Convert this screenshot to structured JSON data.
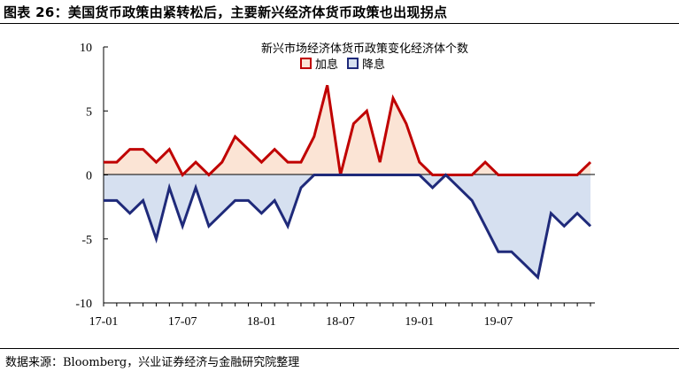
{
  "figure": {
    "title": "图表 26：美国货币政策由紧转松后，主要新兴经济体货币政策也出现拐点",
    "source": "数据来源：Bloomberg，兴业证券经济与金融研究院整理"
  },
  "colors": {
    "ease_line": "#c00000",
    "ease_fill": "#fbe4d5",
    "hike_line": "#1f2a7a",
    "hike_fill": "#d6e0f0"
  },
  "chart_data": {
    "type": "area",
    "title": "新兴市场经济体货币政策变化经济体个数",
    "ylim": [
      -10,
      10
    ],
    "yticks": [
      10,
      5,
      0,
      -5,
      -10
    ],
    "xtick_labels": [
      {
        "index": 0,
        "label": "17-01"
      },
      {
        "index": 6,
        "label": "17-07"
      },
      {
        "index": 12,
        "label": "18-01"
      },
      {
        "index": 18,
        "label": "18-07"
      },
      {
        "index": 24,
        "label": "19-01"
      },
      {
        "index": 30,
        "label": "19-07"
      }
    ],
    "x": [
      "17-01",
      "17-02",
      "17-03",
      "17-04",
      "17-05",
      "17-06",
      "17-07",
      "17-08",
      "17-09",
      "17-10",
      "17-11",
      "17-12",
      "18-01",
      "18-02",
      "18-03",
      "18-04",
      "18-05",
      "18-06",
      "18-07",
      "18-08",
      "18-09",
      "18-10",
      "18-11",
      "18-12",
      "19-01",
      "19-02",
      "19-03",
      "19-04",
      "19-05",
      "19-06",
      "19-07",
      "19-08",
      "19-09",
      "19-10",
      "19-11",
      "19-12",
      "20-01",
      "20-02"
    ],
    "series": [
      {
        "name": "加息",
        "values": [
          1,
          1,
          2,
          2,
          1,
          2,
          0,
          1,
          0,
          1,
          3,
          2,
          1,
          2,
          1,
          1,
          3,
          7,
          0,
          4,
          5,
          1,
          6,
          4,
          1,
          0,
          0,
          0,
          0,
          1,
          0,
          0,
          0,
          0,
          0,
          0,
          0,
          1
        ]
      },
      {
        "name": "降息",
        "values": [
          -2,
          -2,
          -3,
          -2,
          -5,
          -1,
          -4,
          -1,
          -4,
          -3,
          -2,
          -2,
          -3,
          -2,
          -4,
          -1,
          0,
          0,
          0,
          0,
          0,
          0,
          0,
          0,
          0,
          -1,
          0,
          -1,
          -2,
          -4,
          -6,
          -6,
          -7,
          -8,
          -3,
          -4,
          -3,
          -4
        ]
      }
    ]
  }
}
